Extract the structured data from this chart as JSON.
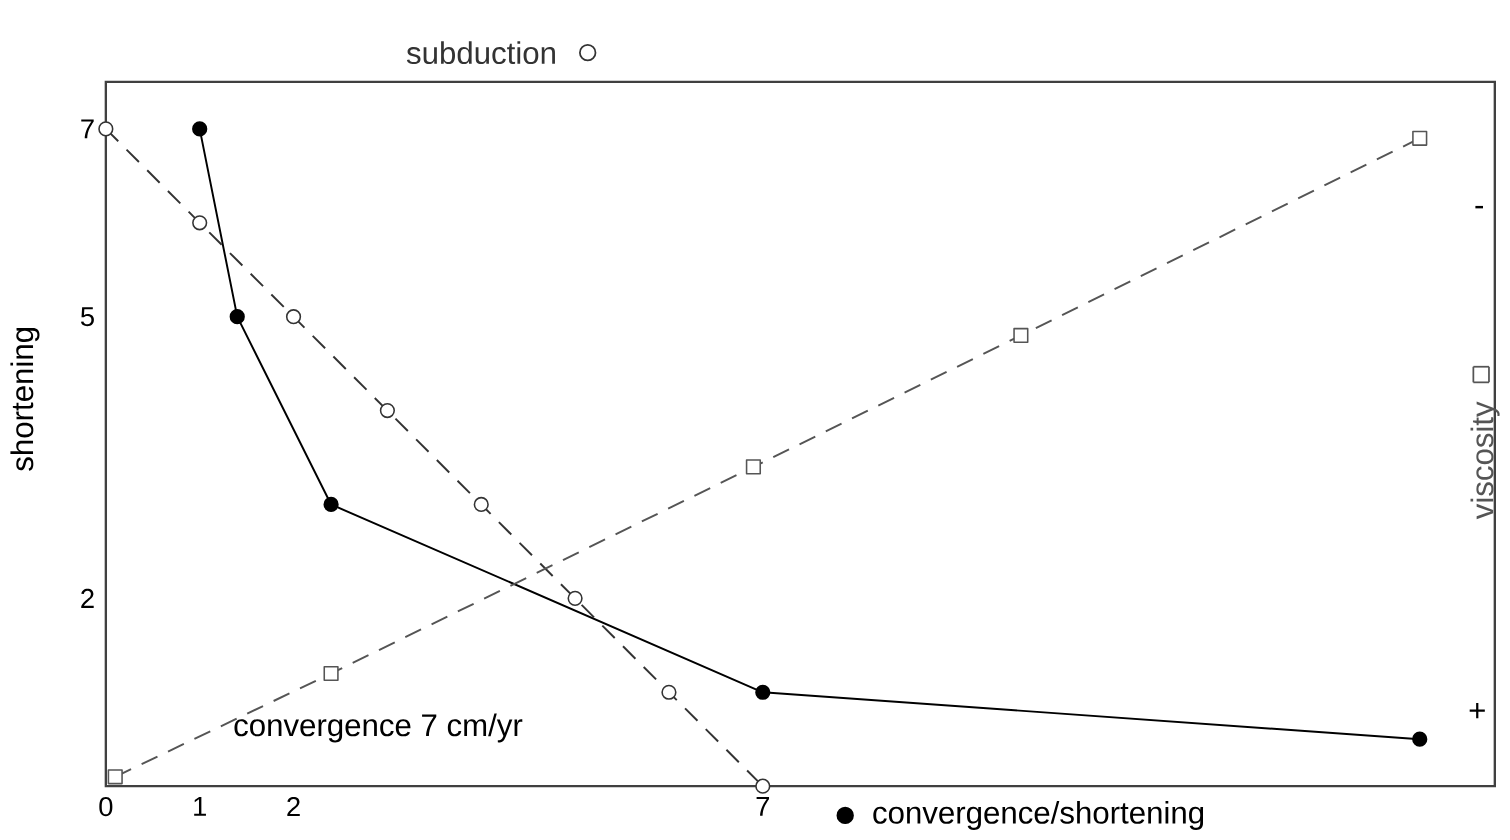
{
  "chart_data": {
    "type": "line",
    "ylabel": "shortening",
    "xlim": [
      0,
      14.8
    ],
    "ylim": [
      0,
      7.5
    ],
    "xticks": [
      0,
      1,
      2,
      7
    ],
    "yticks": [
      2,
      5,
      7
    ],
    "annotations": [
      "convergence 7 cm/yr",
      "+",
      "-"
    ],
    "series": [
      {
        "name": "convergence/shortening",
        "color": "#000000",
        "marker": "circle",
        "line_style": "solid",
        "x": [
          1,
          1.4,
          2.4,
          7,
          14
        ],
        "values": [
          7,
          5,
          3,
          1,
          0.5
        ]
      },
      {
        "name": "subduction",
        "color": "#333333",
        "marker": "circle",
        "line_style": "dashed",
        "x": [
          0,
          1,
          2,
          3,
          4,
          5,
          6,
          7
        ],
        "values": [
          7,
          6,
          5,
          4,
          3,
          2,
          1,
          0
        ]
      },
      {
        "name": "viscosity",
        "color": "#555555",
        "marker": "square",
        "line_style": "dashed",
        "x": [
          0.1,
          2.4,
          6.9,
          9.75,
          14
        ],
        "values": [
          0.1,
          1.2,
          3.4,
          4.8,
          6.9
        ]
      }
    ]
  }
}
